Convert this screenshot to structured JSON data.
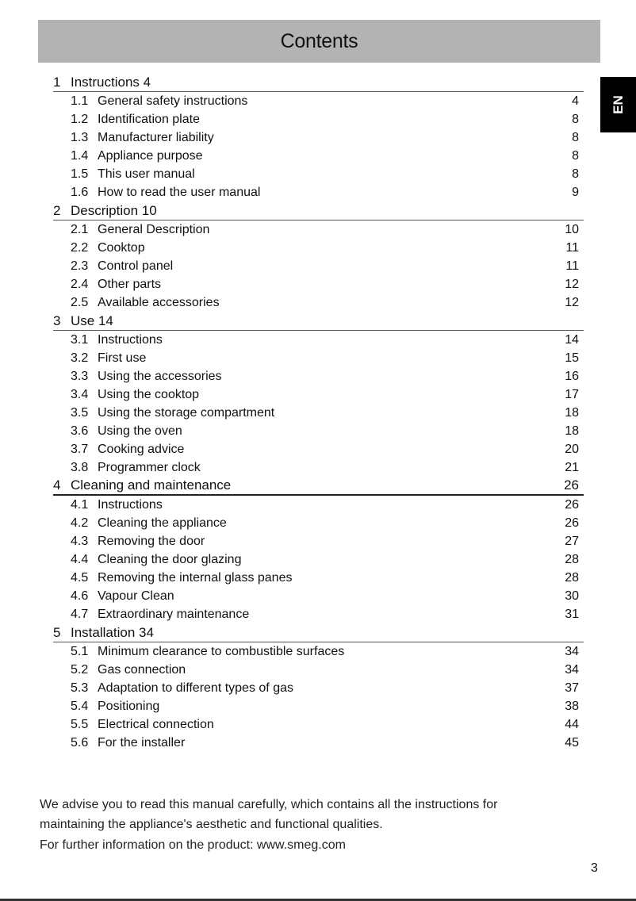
{
  "title": "Contents",
  "language_tab": "EN",
  "sections": [
    {
      "num": "1",
      "title": "Instructions 4",
      "page": "",
      "strong": false,
      "items": [
        {
          "num": "1.1",
          "title": "General safety instructions",
          "page": "4"
        },
        {
          "num": "1.2",
          "title": "Identification plate",
          "page": "8"
        },
        {
          "num": "1.3",
          "title": "Manufacturer liability",
          "page": "8"
        },
        {
          "num": "1.4",
          "title": "Appliance purpose",
          "page": "8"
        },
        {
          "num": "1.5",
          "title": "This user manual",
          "page": "8"
        },
        {
          "num": "1.6",
          "title": "How to read the user manual",
          "page": "9"
        }
      ]
    },
    {
      "num": "2",
      "title": "Description 10",
      "page": "",
      "strong": false,
      "items": [
        {
          "num": "2.1",
          "title": "General Description",
          "page": "10"
        },
        {
          "num": "2.2",
          "title": "Cooktop",
          "page": "11"
        },
        {
          "num": "2.3",
          "title": "Control panel",
          "page": "11"
        },
        {
          "num": "2.4",
          "title": "Other parts",
          "page": "12"
        },
        {
          "num": "2.5",
          "title": "Available accessories",
          "page": "12"
        }
      ]
    },
    {
      "num": "3",
      "title": "Use 14",
      "page": "",
      "strong": false,
      "items": [
        {
          "num": "3.1",
          "title": "Instructions",
          "page": "14"
        },
        {
          "num": "3.2",
          "title": "First use",
          "page": "15"
        },
        {
          "num": "3.3",
          "title": "Using the accessories",
          "page": "16"
        },
        {
          "num": "3.4",
          "title": "Using the cooktop",
          "page": "17"
        },
        {
          "num": "3.5",
          "title": "Using the storage compartment",
          "page": "18"
        },
        {
          "num": "3.6",
          "title": "Using the oven",
          "page": "18"
        },
        {
          "num": "3.7",
          "title": "Cooking advice",
          "page": "20"
        },
        {
          "num": "3.8",
          "title": "Programmer clock",
          "page": "21"
        }
      ]
    },
    {
      "num": "4",
      "title": "Cleaning and maintenance",
      "page": "26",
      "strong": true,
      "items": [
        {
          "num": "4.1",
          "title": "Instructions",
          "page": "26"
        },
        {
          "num": "4.2",
          "title": "Cleaning the appliance",
          "page": "26"
        },
        {
          "num": "4.3",
          "title": "Removing the door",
          "page": "27"
        },
        {
          "num": "4.4",
          "title": "Cleaning the door glazing",
          "page": "28"
        },
        {
          "num": "4.5",
          "title": "Removing the internal glass panes",
          "page": "28"
        },
        {
          "num": "4.6",
          "title": "Vapour Clean",
          "page": "30"
        },
        {
          "num": "4.7",
          "title": "Extraordinary maintenance",
          "page": "31"
        }
      ]
    },
    {
      "num": "5",
      "title": "Installation 34",
      "page": "",
      "strong": false,
      "items": [
        {
          "num": "5.1",
          "title": "Minimum clearance to combustible surfaces",
          "page": "34"
        },
        {
          "num": "5.2",
          "title": "Gas connection",
          "page": "34"
        },
        {
          "num": "5.3",
          "title": "Adaptation to different types of gas",
          "page": "37"
        },
        {
          "num": "5.4",
          "title": "Positioning",
          "page": "38"
        },
        {
          "num": "5.5",
          "title": "Electrical connection",
          "page": "44"
        },
        {
          "num": "5.6",
          "title": "For the installer",
          "page": "45"
        }
      ]
    }
  ],
  "footer": {
    "line1": "We advise you to read this manual carefully, which contains all the instructions for",
    "line2": "maintaining the appliance's aesthetic and functional qualities.",
    "line3": "For further information on the product: www.smeg.com"
  },
  "page_number": "3"
}
